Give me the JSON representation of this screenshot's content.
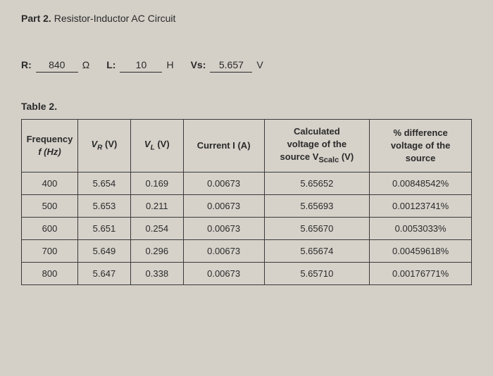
{
  "title": {
    "part": "Part 2.",
    "name": " Resistor-Inductor AC Circuit"
  },
  "params": {
    "r_label": "R:",
    "r_value": "840",
    "r_unit": "Ω",
    "l_label": "L:",
    "l_value": "10",
    "l_unit": "H",
    "vs_label": "Vs:",
    "vs_value": "5.657",
    "vs_unit": "V"
  },
  "table_caption": "Table 2.",
  "headers": {
    "freq_line1": "Frequency",
    "freq_line2": "f (Hz)",
    "vr": "V",
    "vr_sub": "R",
    "vr_unit": " (V)",
    "vl": "V",
    "vl_sub": "L",
    "vl_unit": " (V)",
    "current": "Current I (A)",
    "calc_line1": "Calculated",
    "calc_line2": "voltage of the",
    "calc_line3_a": "source V",
    "calc_line3_b": "Scalc",
    "calc_line3_c": " (V)",
    "diff_line1": "% difference",
    "diff_line2": "voltage of the",
    "diff_line3": "source"
  },
  "rows": [
    {
      "freq": "400",
      "vr": "5.654",
      "vl": "0.169",
      "current": "0.00673",
      "calc": "5.65652",
      "diff": "0.00848542%"
    },
    {
      "freq": "500",
      "vr": "5.653",
      "vl": "0.211",
      "current": "0.00673",
      "calc": "5.65693",
      "diff": "0.00123741%"
    },
    {
      "freq": "600",
      "vr": "5.651",
      "vl": "0.254",
      "current": "0.00673",
      "calc": "5.65670",
      "diff": "0.0053033%"
    },
    {
      "freq": "700",
      "vr": "5.649",
      "vl": "0.296",
      "current": "0.00673",
      "calc": "5.65674",
      "diff": "0.00459618%"
    },
    {
      "freq": "800",
      "vr": "5.647",
      "vl": "0.338",
      "current": "0.00673",
      "calc": "5.65710",
      "diff": "0.00176771%"
    }
  ],
  "background_color": "#d4d0c8",
  "border_color": "#3a3a3a",
  "text_color": "#2a2a2a"
}
